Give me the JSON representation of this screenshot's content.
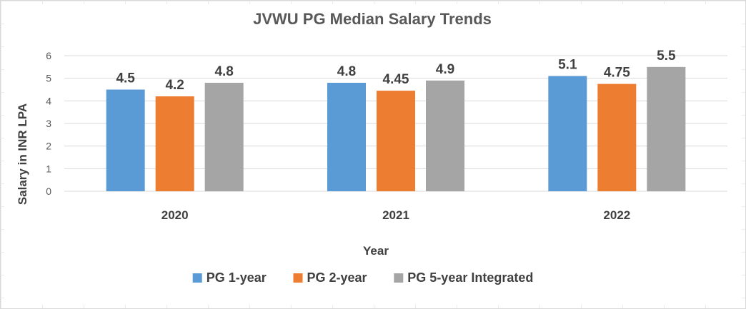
{
  "chart_data": {
    "type": "bar",
    "title": "JVWU PG Median Salary Trends",
    "xlabel": "Year",
    "ylabel": "Salary in INR LPA",
    "categories": [
      "2020",
      "2021",
      "2022"
    ],
    "ylim": [
      0,
      6
    ],
    "yticks": [
      0,
      1,
      2,
      3,
      4,
      5,
      6
    ],
    "grid": true,
    "legend_position": "bottom",
    "series": [
      {
        "name": "PG 1-year",
        "color": "#5b9bd5",
        "values": [
          4.5,
          4.8,
          5.1
        ]
      },
      {
        "name": "PG 2-year",
        "color": "#ed7d31",
        "values": [
          4.2,
          4.45,
          4.75
        ]
      },
      {
        "name": "PG 5-year Integrated",
        "color": "#a5a5a5",
        "values": [
          4.8,
          4.9,
          5.5
        ]
      }
    ]
  }
}
